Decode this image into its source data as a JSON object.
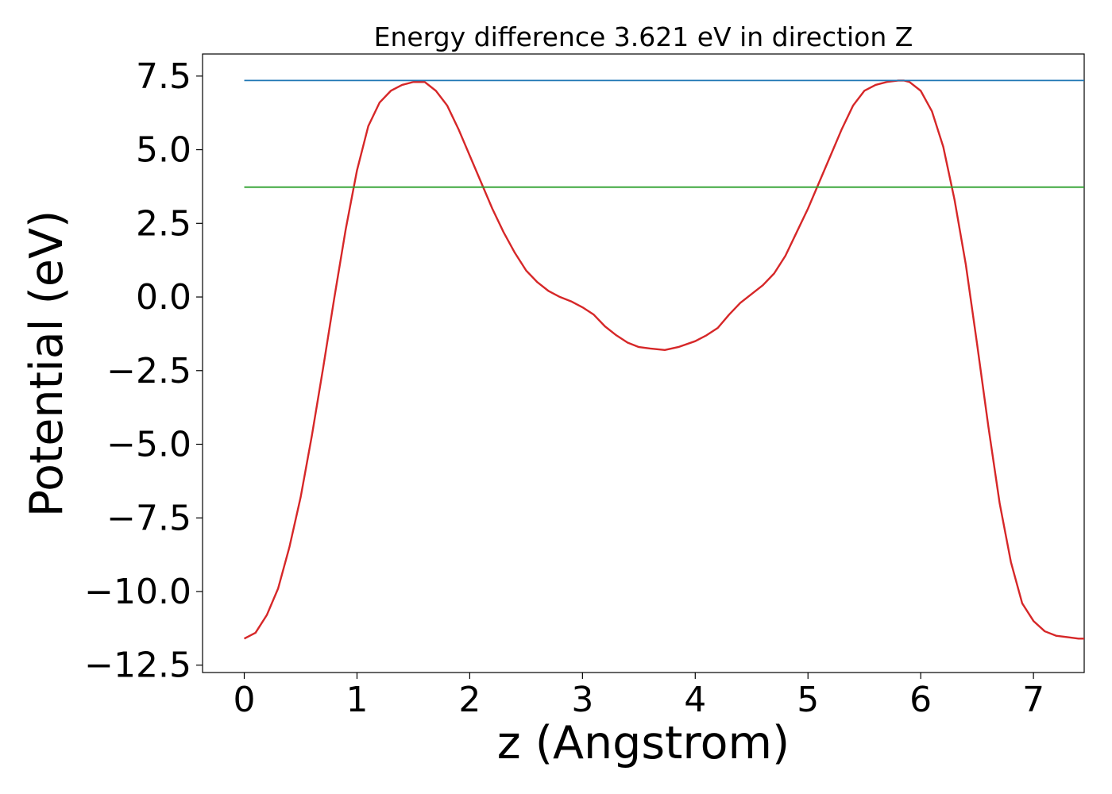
{
  "chart_data": {
    "type": "line",
    "title": "Energy difference 3.621 eV in direction Z",
    "xlabel": "z (Angstrom)",
    "ylabel": "Potential (eV)",
    "xlim": [
      -0.37,
      7.45
    ],
    "ylim": [
      -12.75,
      8.25
    ],
    "xticks": [
      0,
      1,
      2,
      3,
      4,
      5,
      6,
      7
    ],
    "xtick_labels": [
      "0",
      "1",
      "2",
      "3",
      "4",
      "5",
      "6",
      "7"
    ],
    "yticks": [
      -12.5,
      -10.0,
      -7.5,
      -5.0,
      -2.5,
      0.0,
      2.5,
      5.0,
      7.5
    ],
    "ytick_labels": [
      "−12.5",
      "−10.0",
      "−7.5",
      "−5.0",
      "−2.5",
      "0.0",
      "2.5",
      "5.0",
      "7.5"
    ],
    "grid": false,
    "series": [
      {
        "color": "#d62728",
        "x": [
          0,
          0.1,
          0.2,
          0.3,
          0.4,
          0.5,
          0.6,
          0.7,
          0.8,
          0.9,
          1.0,
          1.1,
          1.2,
          1.3,
          1.4,
          1.5,
          1.6,
          1.7,
          1.8,
          1.9,
          2.0,
          2.1,
          2.2,
          2.3,
          2.4,
          2.5,
          2.6,
          2.7,
          2.8,
          2.9,
          3.0,
          3.1,
          3.2,
          3.3,
          3.4,
          3.5,
          3.6,
          3.73,
          3.85,
          4.0,
          4.1,
          4.2,
          4.3,
          4.4,
          4.5,
          4.6,
          4.7,
          4.8,
          4.9,
          5.0,
          5.1,
          5.2,
          5.3,
          5.4,
          5.5,
          5.6,
          5.7,
          5.8,
          5.85,
          5.9,
          6.0,
          6.1,
          6.2,
          6.3,
          6.4,
          6.5,
          6.6,
          6.7,
          6.8,
          6.9,
          7.0,
          7.1,
          7.2,
          7.3,
          7.4,
          7.45
        ],
        "y": [
          -11.6,
          -11.4,
          -10.8,
          -9.9,
          -8.5,
          -6.8,
          -4.7,
          -2.4,
          0.0,
          2.3,
          4.3,
          5.8,
          6.6,
          7.0,
          7.2,
          7.3,
          7.3,
          7.0,
          6.5,
          5.7,
          4.8,
          3.9,
          3.0,
          2.2,
          1.5,
          0.9,
          0.5,
          0.2,
          0.0,
          -0.15,
          -0.35,
          -0.6,
          -1.0,
          -1.3,
          -1.55,
          -1.7,
          -1.75,
          -1.8,
          -1.7,
          -1.5,
          -1.3,
          -1.05,
          -0.6,
          -0.2,
          0.1,
          0.4,
          0.8,
          1.4,
          2.2,
          3.0,
          3.9,
          4.8,
          5.7,
          6.5,
          7.0,
          7.2,
          7.3,
          7.35,
          7.35,
          7.3,
          7.0,
          6.3,
          5.1,
          3.3,
          1.1,
          -1.6,
          -4.4,
          -7.0,
          -9.0,
          -10.4,
          -11.0,
          -11.35,
          -11.5,
          -11.55,
          -11.6,
          -11.6
        ]
      },
      {
        "color": "#1f77b4",
        "x": [
          0,
          7.45
        ],
        "y": [
          7.35,
          7.35
        ]
      },
      {
        "color": "#2ca02c",
        "x": [
          0,
          7.45
        ],
        "y": [
          3.73,
          3.73
        ]
      }
    ]
  }
}
